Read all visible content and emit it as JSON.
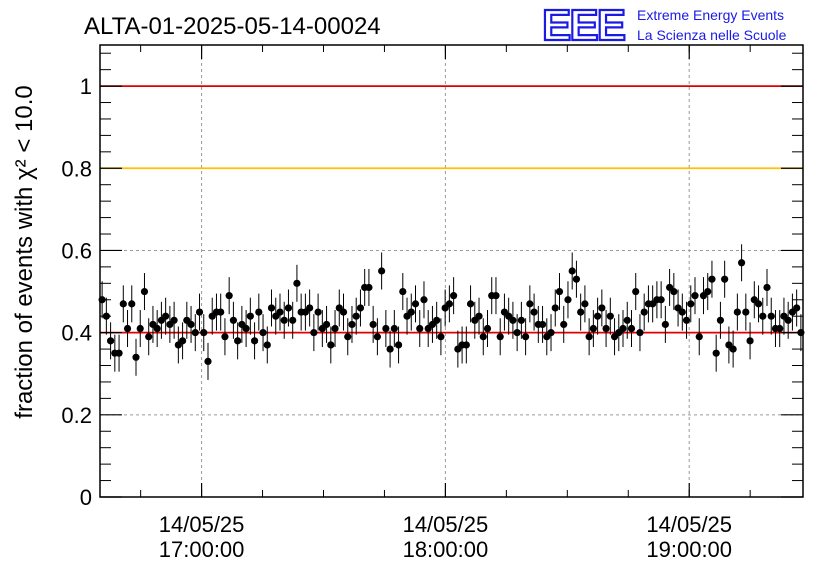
{
  "logo": {
    "mark": "EEE",
    "line1": "Extreme Energy Events",
    "line2": "La Scienza nelle Scuole",
    "color": "#1a1ae6"
  },
  "chart_data": {
    "type": "scatter",
    "title": "ALTA-01-2025-05-14-00024",
    "ylabel": "fraction of events with χ² < 10.0",
    "xlabel": "",
    "ylim": [
      0,
      1.1
    ],
    "xlim": [
      "2025-05-14 16:35:00",
      "2025-05-14 19:28:00"
    ],
    "yticks": [
      "0",
      "0.2",
      "0.4",
      "0.6",
      "0.8",
      "1"
    ],
    "xticks": [
      {
        "date": "14/05/25",
        "time": "17:00:00"
      },
      {
        "date": "14/05/25",
        "time": "18:00:00"
      },
      {
        "date": "14/05/25",
        "time": "19:00:00"
      }
    ],
    "grid": true,
    "reference_lines": [
      {
        "y": 1.0,
        "color": "#e00000"
      },
      {
        "y": 0.8,
        "color": "#ffc000"
      },
      {
        "y": 0.4,
        "color": "#e00000"
      }
    ],
    "error_bar": 0.045,
    "series": [
      {
        "marker_color": "#000000",
        "x_start": "2025-05-14 16:35:00",
        "x_end": "2025-05-14 19:28:00",
        "values": [
          0.48,
          0.44,
          0.38,
          0.35,
          0.35,
          0.47,
          0.41,
          0.47,
          0.34,
          0.41,
          0.5,
          0.39,
          0.42,
          0.41,
          0.43,
          0.44,
          0.42,
          0.43,
          0.37,
          0.38,
          0.43,
          0.42,
          0.4,
          0.45,
          0.4,
          0.33,
          0.44,
          0.45,
          0.45,
          0.39,
          0.49,
          0.43,
          0.38,
          0.42,
          0.41,
          0.44,
          0.38,
          0.45,
          0.4,
          0.37,
          0.46,
          0.44,
          0.45,
          0.43,
          0.46,
          0.43,
          0.52,
          0.45,
          0.45,
          0.46,
          0.4,
          0.45,
          0.41,
          0.42,
          0.37,
          0.41,
          0.46,
          0.45,
          0.39,
          0.42,
          0.44,
          0.46,
          0.51,
          0.51,
          0.42,
          0.39,
          0.55,
          0.41,
          0.36,
          0.41,
          0.37,
          0.5,
          0.44,
          0.45,
          0.47,
          0.41,
          0.48,
          0.41,
          0.42,
          0.43,
          0.39,
          0.46,
          0.47,
          0.49,
          0.36,
          0.37,
          0.37,
          0.47,
          0.43,
          0.44,
          0.39,
          0.41,
          0.49,
          0.49,
          0.39,
          0.45,
          0.44,
          0.43,
          0.4,
          0.43,
          0.39,
          0.47,
          0.45,
          0.42,
          0.42,
          0.39,
          0.4,
          0.46,
          0.5,
          0.42,
          0.48,
          0.55,
          0.53,
          0.45,
          0.47,
          0.39,
          0.41,
          0.44,
          0.46,
          0.41,
          0.44,
          0.39,
          0.4,
          0.41,
          0.43,
          0.41,
          0.5,
          0.4,
          0.45,
          0.47,
          0.47,
          0.48,
          0.48,
          0.42,
          0.51,
          0.5,
          0.46,
          0.45,
          0.43,
          0.47,
          0.49,
          0.39,
          0.49,
          0.5,
          0.53,
          0.35,
          0.43,
          0.53,
          0.37,
          0.36,
          0.45,
          0.57,
          0.45,
          0.38,
          0.48,
          0.47,
          0.44,
          0.51,
          0.44,
          0.41,
          0.41,
          0.44,
          0.43,
          0.45,
          0.46,
          0.4
        ]
      }
    ]
  }
}
